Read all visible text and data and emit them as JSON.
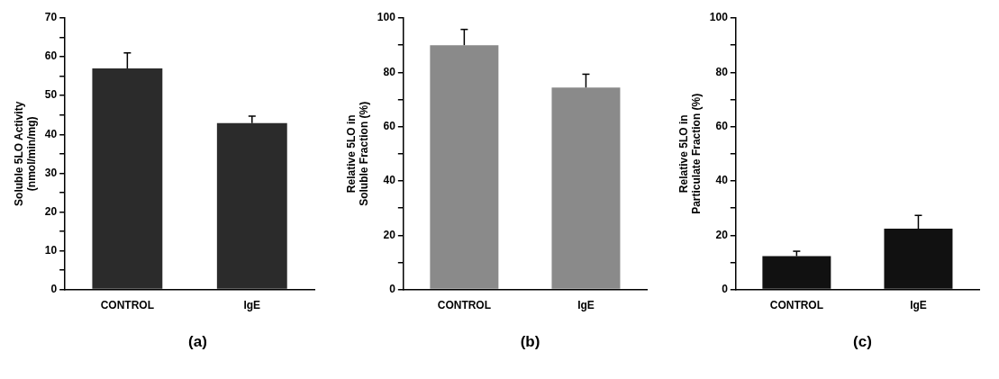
{
  "chart_data": [
    {
      "type": "bar",
      "categories": [
        "CONTROL",
        "IgE"
      ],
      "values": [
        57,
        42.9
      ],
      "color": "#2b2b2b",
      "errors": [
        [
          57,
          61
        ],
        [
          42.9,
          44.7
        ]
      ],
      "ylabel": "Soluble 5LO Activity\n(nmol/min/mg)",
      "ylim": [
        0,
        70
      ],
      "yticks": [
        0,
        {
          "value": 5,
          "label": null
        },
        10,
        {
          "value": 15,
          "label": null
        },
        20,
        {
          "value": 25,
          "label": null
        },
        30,
        {
          "value": 35,
          "label": null
        },
        40,
        {
          "value": 45,
          "label": null
        },
        50,
        {
          "value": 55,
          "label": null
        },
        60,
        {
          "value": 65,
          "label": null
        },
        70
      ],
      "annotations": [
        "(a)"
      ]
    },
    {
      "type": "bar",
      "categories": [
        "CONTROL",
        "IgE"
      ],
      "values": [
        90,
        74.4
      ],
      "color": "#8a8a8a",
      "errors": [
        [
          90,
          95.8
        ],
        [
          74.4,
          79.3
        ]
      ],
      "ylabel": "Relative 5LO in\nSoluble Fraction (%)",
      "ylim": [
        0,
        100
      ],
      "yticks": [
        0,
        {
          "value": 10,
          "label": null
        },
        20,
        {
          "value": 30,
          "label": null
        },
        40,
        {
          "value": 50,
          "label": null
        },
        60,
        {
          "value": 70,
          "label": null
        },
        80,
        {
          "value": 90,
          "label": null
        },
        100
      ],
      "annotations": [
        "(b)"
      ]
    },
    {
      "type": "bar",
      "categories": [
        "CONTROL",
        "IgE"
      ],
      "values": [
        12.3,
        22.4
      ],
      "color": "#111111",
      "errors": [
        [
          12.3,
          14.1
        ],
        [
          22.4,
          27.3
        ]
      ],
      "ylabel": "Relative 5LO in\nParticulate Fraction (%)",
      "ylim": [
        0,
        100
      ],
      "yticks": [
        0,
        {
          "value": 10,
          "label": null
        },
        20,
        {
          "value": 30,
          "label": null
        },
        40,
        {
          "value": 50,
          "label": null
        },
        60,
        {
          "value": 70,
          "label": null
        },
        80,
        {
          "value": 90,
          "label": null
        },
        100
      ],
      "annotations": [
        "(c)"
      ]
    }
  ]
}
